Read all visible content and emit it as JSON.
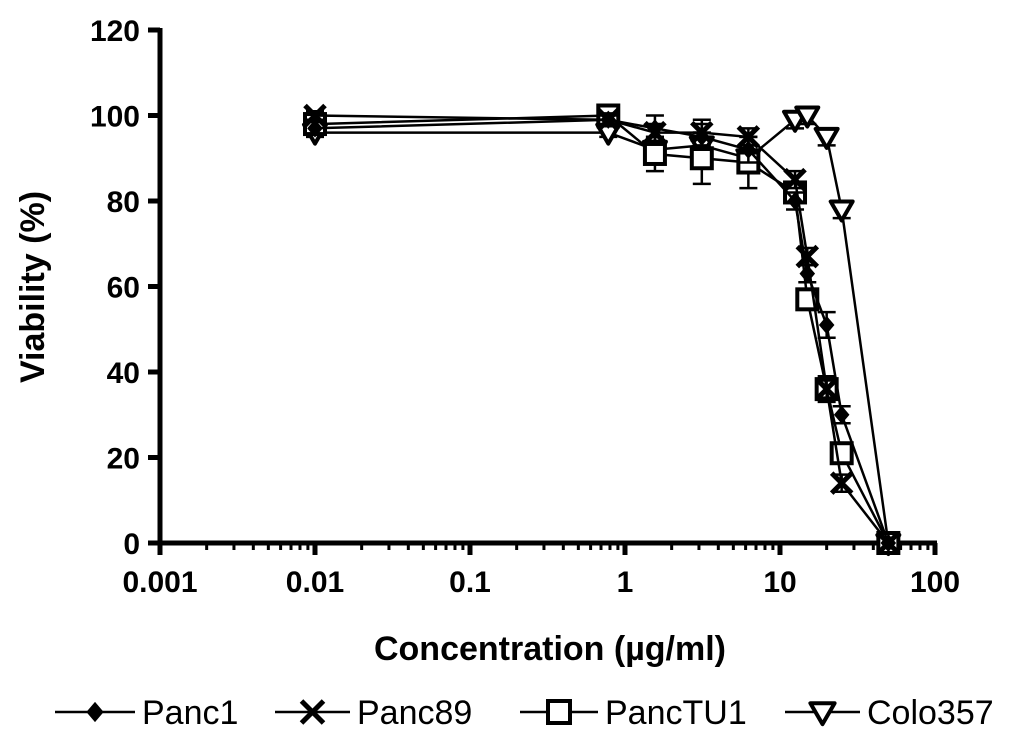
{
  "chart_data": {
    "type": "line",
    "xlabel": "Concentration (µg/ml)",
    "ylabel": "Viability (%)",
    "x_scale": "log",
    "xlim": [
      0.001,
      100
    ],
    "ylim": [
      0,
      120
    ],
    "x_ticks": [
      "0.001",
      "0.01",
      "0.1",
      "1",
      "10",
      "100"
    ],
    "y_ticks": [
      "0",
      "20",
      "40",
      "60",
      "80",
      "100",
      "120"
    ],
    "grid": false,
    "legend_position": "bottom",
    "series": [
      {
        "name": "Panc1",
        "marker": "diamond",
        "x": [
          0.01,
          0.78,
          1.56,
          3.13,
          6.25,
          12.5,
          15,
          20,
          25,
          50
        ],
        "y": [
          97,
          99,
          97,
          95,
          92,
          80,
          63,
          51,
          30,
          0
        ],
        "err": [
          1.5,
          1.5,
          3,
          3,
          3,
          2,
          2,
          3,
          2,
          0
        ]
      },
      {
        "name": "Panc89",
        "marker": "x",
        "x": [
          0.01,
          0.78,
          1.56,
          3.13,
          6.25,
          12.5,
          15,
          20,
          25,
          50
        ],
        "y": [
          100,
          99,
          96,
          96,
          95,
          85,
          67,
          36,
          14,
          0
        ],
        "err": [
          1,
          1,
          2,
          3,
          2,
          2,
          2,
          2,
          2,
          0
        ]
      },
      {
        "name": "PancTU1",
        "marker": "square",
        "x": [
          0.01,
          0.78,
          1.56,
          3.13,
          6.25,
          12.5,
          15,
          20,
          25,
          50
        ],
        "y": [
          98,
          100,
          91,
          90,
          89,
          82,
          57,
          36,
          21,
          0
        ],
        "err": [
          1.5,
          1,
          4,
          6,
          6,
          2,
          2,
          3,
          2,
          0
        ]
      },
      {
        "name": "Colo357",
        "marker": "triangle-down",
        "x": [
          0.01,
          0.78,
          1.56,
          3.13,
          6.25,
          12.5,
          15,
          20,
          25,
          50
        ],
        "y": [
          96,
          96,
          92,
          93,
          90,
          99,
          100,
          95,
          78,
          0
        ],
        "err": [
          1,
          1,
          3,
          3,
          3,
          2,
          2,
          2,
          2,
          0
        ]
      }
    ]
  }
}
